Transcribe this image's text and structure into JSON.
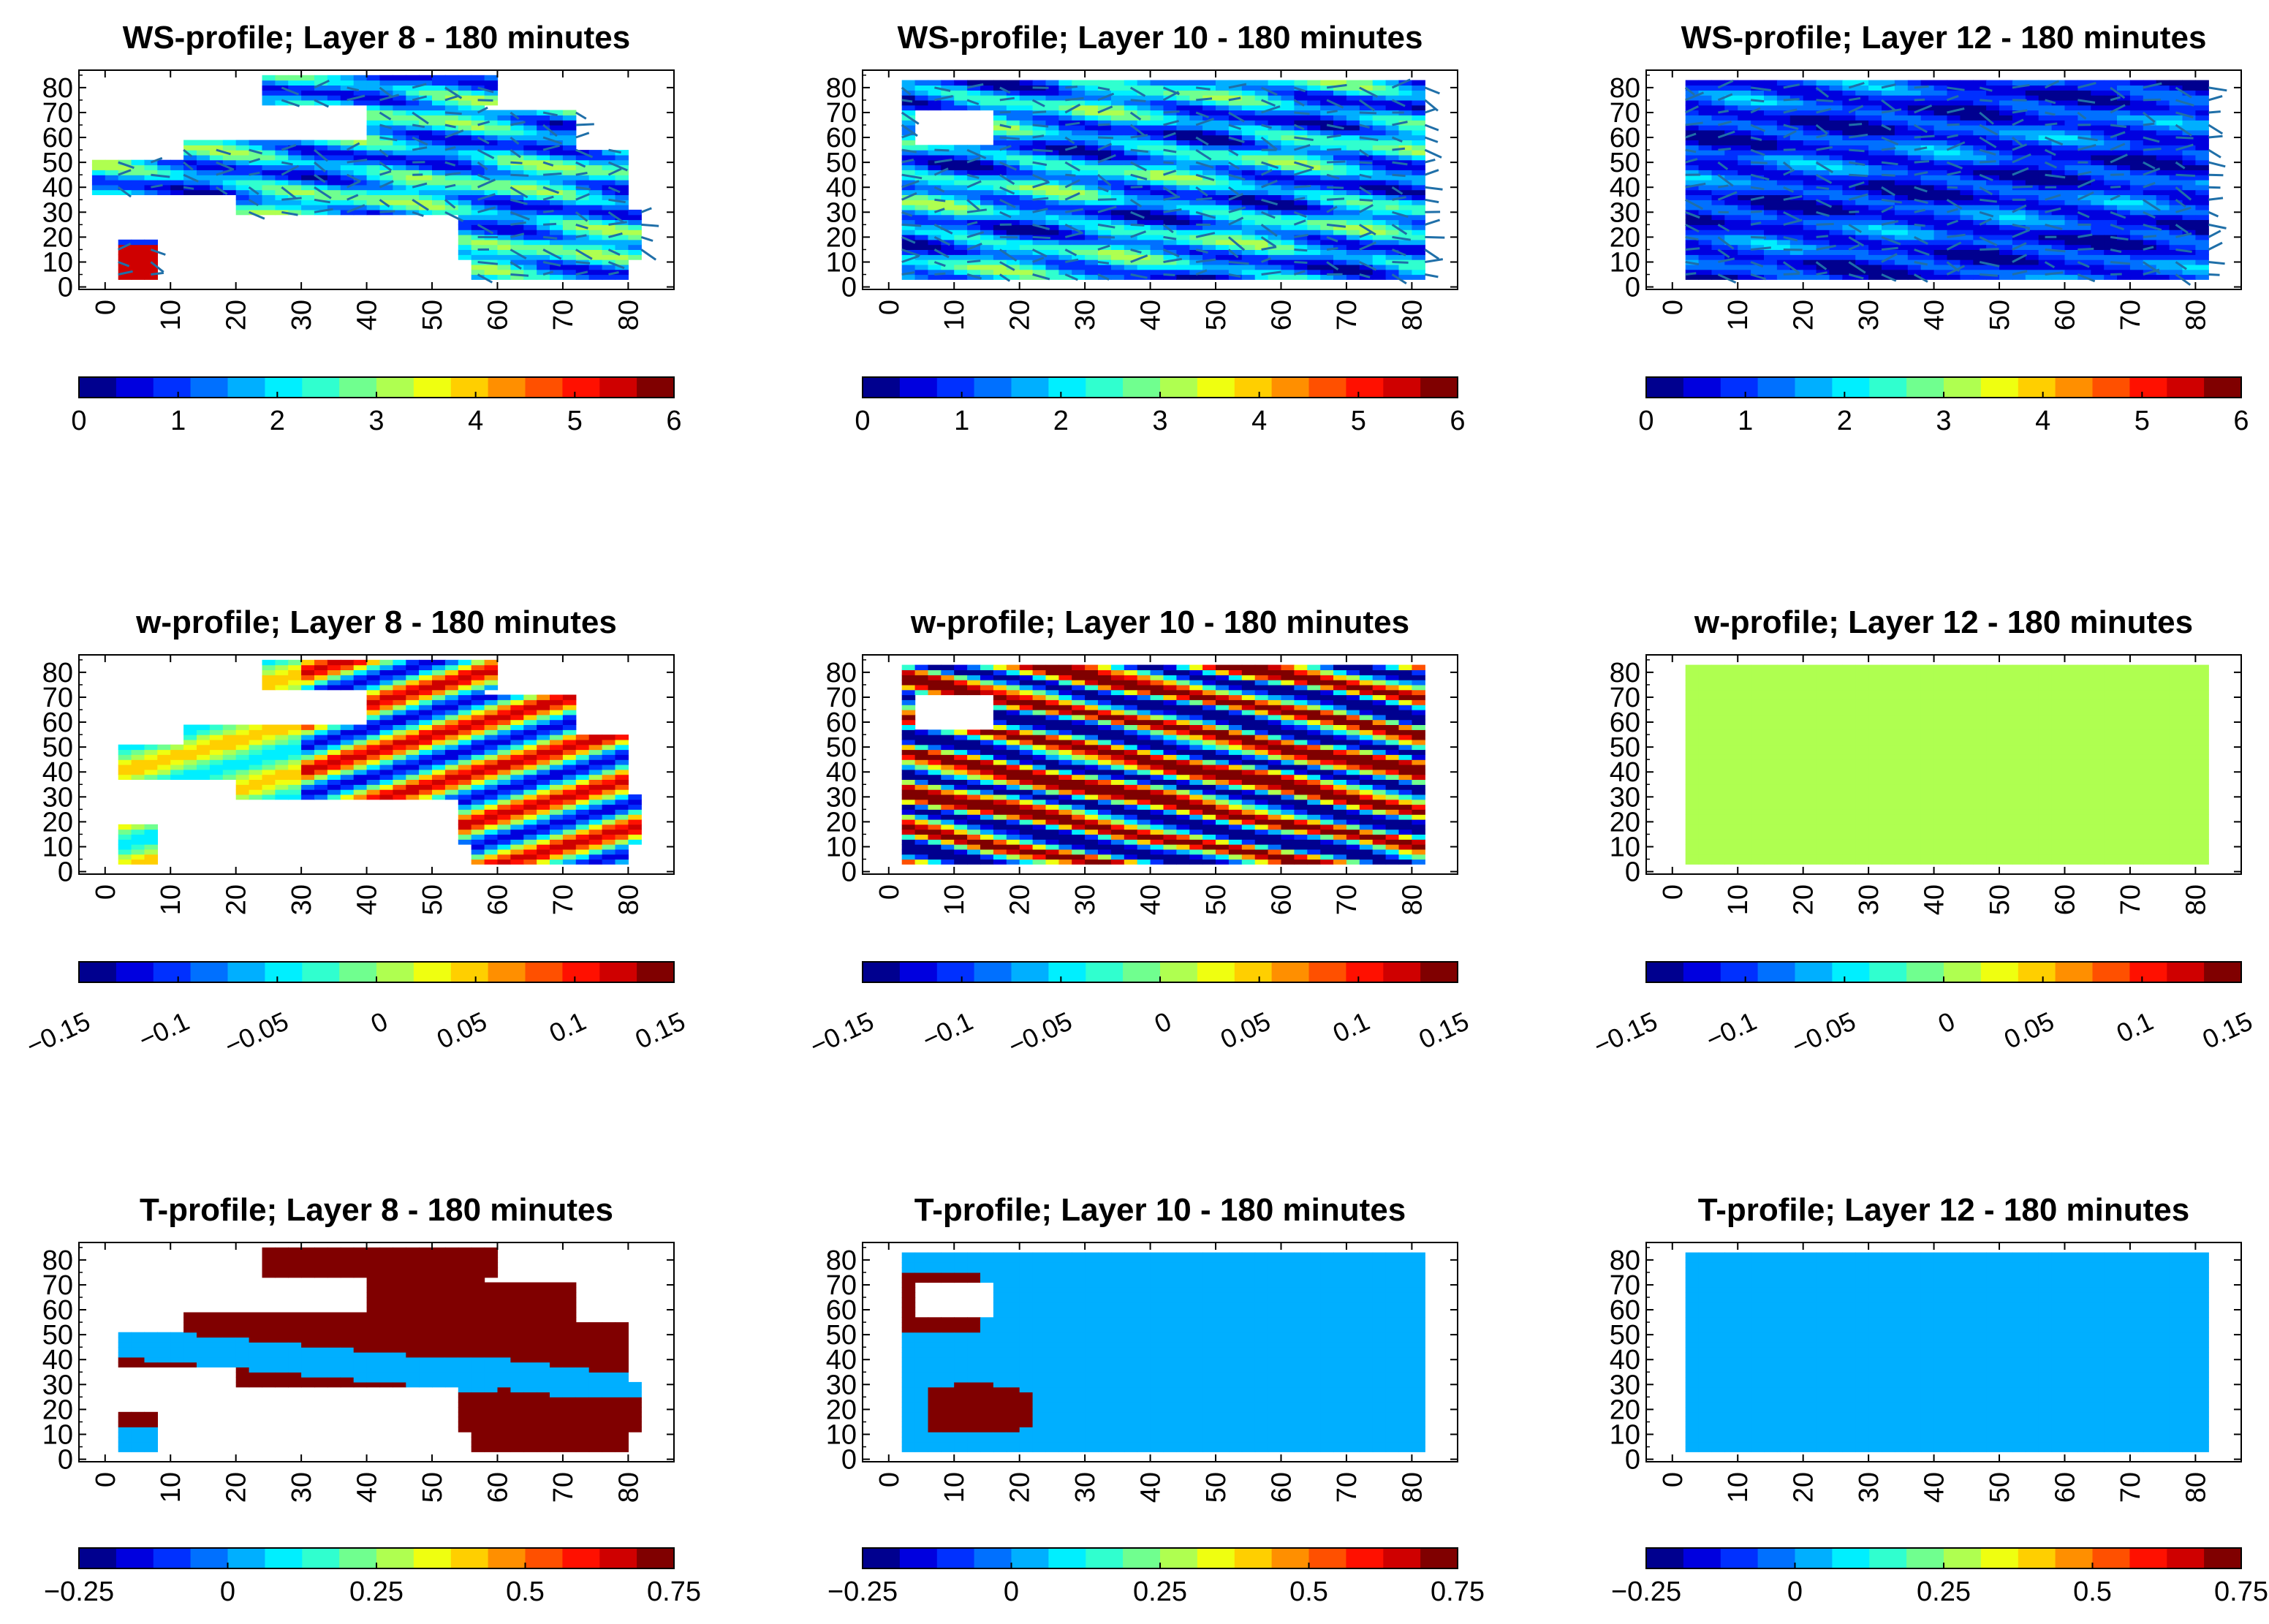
{
  "figure": {
    "rows": 3,
    "cols": 3
  },
  "chart_data": [
    {
      "type": "heatmap",
      "title": "WS-profile; Layer 8 - 180 minutes",
      "field": "WS",
      "layer": 8,
      "time": "180 minutes",
      "x_ticks": [
        "0",
        "10",
        "20",
        "30",
        "40",
        "50",
        "60",
        "70",
        "80"
      ],
      "y_ticks": [
        "0",
        "10",
        "20",
        "30",
        "40",
        "50",
        "60",
        "70",
        "80"
      ],
      "xlim": [
        -4,
        87
      ],
      "ylim": [
        -1,
        87
      ],
      "colorbar": {
        "min": 0,
        "max": 6,
        "ticks": [
          "0",
          "1",
          "2",
          "3",
          "4",
          "5",
          "6"
        ],
        "levels": 16
      },
      "vectors": true,
      "pattern": "ws_sparse"
    },
    {
      "type": "heatmap",
      "title": "WS-profile; Layer 10 - 180 minutes",
      "field": "WS",
      "layer": 10,
      "time": "180 minutes",
      "x_ticks": [
        "0",
        "10",
        "20",
        "30",
        "40",
        "50",
        "60",
        "70",
        "80"
      ],
      "y_ticks": [
        "0",
        "10",
        "20",
        "30",
        "40",
        "50",
        "60",
        "70",
        "80"
      ],
      "xlim": [
        -4,
        87
      ],
      "ylim": [
        -1,
        87
      ],
      "colorbar": {
        "min": 0,
        "max": 6,
        "ticks": [
          "0",
          "1",
          "2",
          "3",
          "4",
          "5",
          "6"
        ],
        "levels": 16
      },
      "vectors": true,
      "pattern": "ws_full_mid"
    },
    {
      "type": "heatmap",
      "title": "WS-profile; Layer 12 - 180 minutes",
      "field": "WS",
      "layer": 12,
      "time": "180 minutes",
      "x_ticks": [
        "0",
        "10",
        "20",
        "30",
        "40",
        "50",
        "60",
        "70",
        "80"
      ],
      "y_ticks": [
        "0",
        "10",
        "20",
        "30",
        "40",
        "50",
        "60",
        "70",
        "80"
      ],
      "xlim": [
        -4,
        87
      ],
      "ylim": [
        -1,
        87
      ],
      "colorbar": {
        "min": 0,
        "max": 6,
        "ticks": [
          "0",
          "1",
          "2",
          "3",
          "4",
          "5",
          "6"
        ],
        "levels": 16
      },
      "vectors": true,
      "pattern": "ws_full_low"
    },
    {
      "type": "heatmap",
      "title": "w-profile; Layer 8 - 180 minutes",
      "field": "w",
      "layer": 8,
      "time": "180 minutes",
      "x_ticks": [
        "0",
        "10",
        "20",
        "30",
        "40",
        "50",
        "60",
        "70",
        "80"
      ],
      "y_ticks": [
        "0",
        "10",
        "20",
        "30",
        "40",
        "50",
        "60",
        "70",
        "80"
      ],
      "xlim": [
        -4,
        87
      ],
      "ylim": [
        -1,
        87
      ],
      "colorbar": {
        "min": -0.15,
        "max": 0.15,
        "ticks": [
          "−0.15",
          "−0.1",
          "−0.05",
          "0",
          "0.05",
          "0.1",
          "0.15"
        ],
        "levels": 16,
        "rotated_ticks": true
      },
      "vectors": false,
      "pattern": "w_sparse"
    },
    {
      "type": "heatmap",
      "title": "w-profile; Layer 10 - 180 minutes",
      "field": "w",
      "layer": 10,
      "time": "180 minutes",
      "x_ticks": [
        "0",
        "10",
        "20",
        "30",
        "40",
        "50",
        "60",
        "70",
        "80"
      ],
      "y_ticks": [
        "0",
        "10",
        "20",
        "30",
        "40",
        "50",
        "60",
        "70",
        "80"
      ],
      "xlim": [
        -4,
        87
      ],
      "ylim": [
        -1,
        87
      ],
      "colorbar": {
        "min": -0.15,
        "max": 0.15,
        "ticks": [
          "−0.15",
          "−0.1",
          "−0.05",
          "0",
          "0.05",
          "0.1",
          "0.15"
        ],
        "levels": 16,
        "rotated_ticks": true
      },
      "vectors": false,
      "pattern": "w_full"
    },
    {
      "type": "heatmap",
      "title": "w-profile; Layer 12 - 180 minutes",
      "field": "w",
      "layer": 12,
      "time": "180 minutes",
      "x_ticks": [
        "0",
        "10",
        "20",
        "30",
        "40",
        "50",
        "60",
        "70",
        "80"
      ],
      "y_ticks": [
        "0",
        "10",
        "20",
        "30",
        "40",
        "50",
        "60",
        "70",
        "80"
      ],
      "xlim": [
        -4,
        87
      ],
      "ylim": [
        -1,
        87
      ],
      "colorbar": {
        "min": -0.15,
        "max": 0.15,
        "ticks": [
          "−0.15",
          "−0.1",
          "−0.05",
          "0",
          "0.05",
          "0.1",
          "0.15"
        ],
        "levels": 16,
        "rotated_ticks": true
      },
      "vectors": false,
      "pattern": "uniform",
      "uniform_value": 0.0
    },
    {
      "type": "heatmap",
      "title": "T-profile; Layer 8 - 180 minutes",
      "field": "T",
      "layer": 8,
      "time": "180 minutes",
      "x_ticks": [
        "0",
        "10",
        "20",
        "30",
        "40",
        "50",
        "60",
        "70",
        "80"
      ],
      "y_ticks": [
        "0",
        "10",
        "20",
        "30",
        "40",
        "50",
        "60",
        "70",
        "80"
      ],
      "xlim": [
        -4,
        87
      ],
      "ylim": [
        -1,
        87
      ],
      "colorbar": {
        "min": -0.25,
        "max": 0.75,
        "ticks": [
          "−0.25",
          "0",
          "0.25",
          "0.5",
          "0.75"
        ],
        "levels": 16
      },
      "vectors": false,
      "pattern": "t_sparse"
    },
    {
      "type": "heatmap",
      "title": "T-profile; Layer 10 - 180 minutes",
      "field": "T",
      "layer": 10,
      "time": "180 minutes",
      "x_ticks": [
        "0",
        "10",
        "20",
        "30",
        "40",
        "50",
        "60",
        "70",
        "80"
      ],
      "y_ticks": [
        "0",
        "10",
        "20",
        "30",
        "40",
        "50",
        "60",
        "70",
        "80"
      ],
      "xlim": [
        -4,
        87
      ],
      "ylim": [
        -1,
        87
      ],
      "colorbar": {
        "min": -0.25,
        "max": 0.75,
        "ticks": [
          "−0.25",
          "0",
          "0.25",
          "0.5",
          "0.75"
        ],
        "levels": 16
      },
      "vectors": false,
      "pattern": "t_full"
    },
    {
      "type": "heatmap",
      "title": "T-profile; Layer 12 - 180 minutes",
      "field": "T",
      "layer": 12,
      "time": "180 minutes",
      "x_ticks": [
        "0",
        "10",
        "20",
        "30",
        "40",
        "50",
        "60",
        "70",
        "80"
      ],
      "y_ticks": [
        "0",
        "10",
        "20",
        "30",
        "40",
        "50",
        "60",
        "70",
        "80"
      ],
      "xlim": [
        -4,
        87
      ],
      "ylim": [
        -1,
        87
      ],
      "colorbar": {
        "min": -0.25,
        "max": 0.75,
        "ticks": [
          "−0.25",
          "0",
          "0.25",
          "0.5",
          "0.75"
        ],
        "levels": 16
      },
      "vectors": false,
      "pattern": "uniform",
      "uniform_value": 0.0
    }
  ],
  "colormap": [
    "#00008f",
    "#0000df",
    "#0030ff",
    "#0070ff",
    "#00afff",
    "#00efff",
    "#30ffcf",
    "#70ff8f",
    "#afff50",
    "#efff10",
    "#ffcf00",
    "#ff8f00",
    "#ff5000",
    "#ff1000",
    "#cf0000",
    "#800000"
  ]
}
